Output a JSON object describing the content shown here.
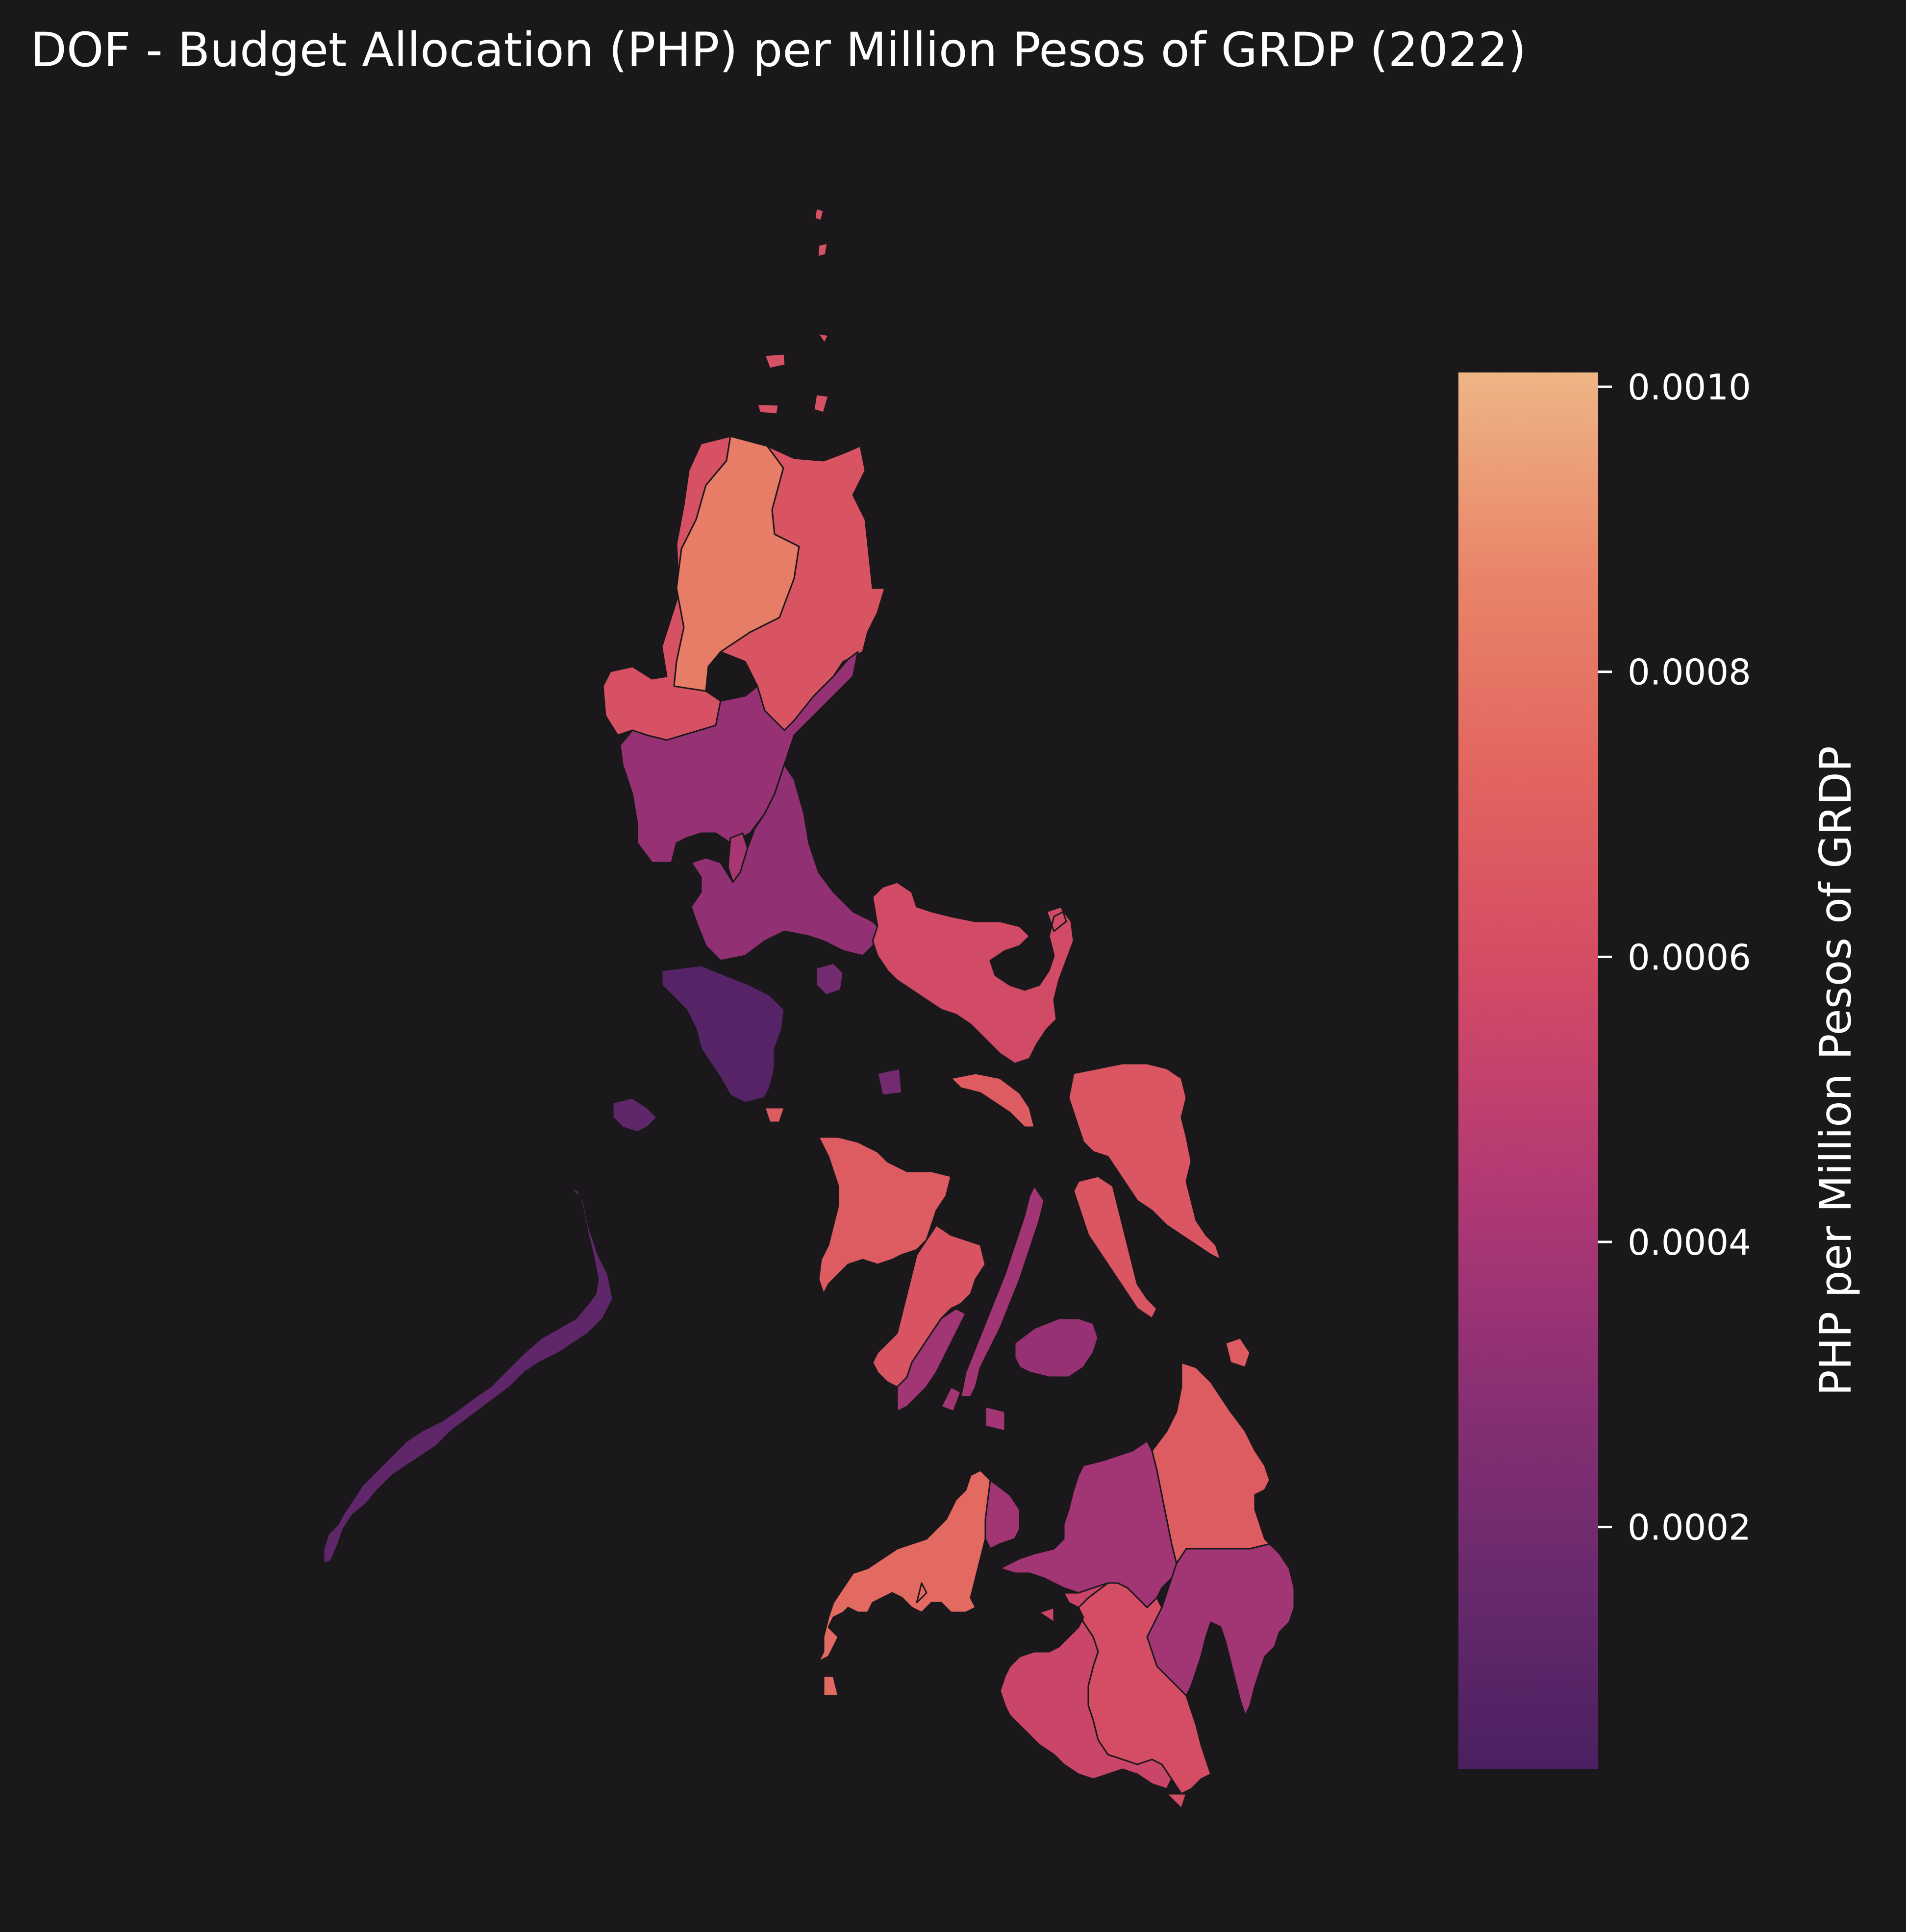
{
  "title": "DOF - Budget Allocation (PHP) per Million Pesos of GRDP (2022)",
  "colorbar": {
    "label": "PHP per Million Pesos of GRDP",
    "min": 3e-05,
    "max": 0.00101,
    "ticks": [
      {
        "value": 0.001,
        "label": "0.0010"
      },
      {
        "value": 0.0008,
        "label": "0.0008"
      },
      {
        "value": 0.0006,
        "label": "0.0006"
      },
      {
        "value": 0.0004,
        "label": "0.0004"
      },
      {
        "value": 0.0002,
        "label": "0.0002"
      }
    ],
    "stops": [
      "#4a2061",
      "#6b2a6e",
      "#8e3074",
      "#b53a73",
      "#d34b65",
      "#e2655f",
      "#e9856a",
      "#eeb586"
    ]
  },
  "background": "#1a181b",
  "chart_data": {
    "type": "choropleth",
    "regions": [
      {
        "key": "batanes",
        "value": 0.00062
      },
      {
        "key": "ilocos",
        "value": 0.00062
      },
      {
        "key": "car",
        "value": 0.00083
      },
      {
        "key": "cagayan-valley",
        "value": 0.00064
      },
      {
        "key": "central-luzon",
        "value": 0.00034
      },
      {
        "key": "ncr",
        "value": 0.0004
      },
      {
        "key": "calabarzon",
        "value": 0.00032
      },
      {
        "key": "mindoro",
        "value": 8e-05
      },
      {
        "key": "marinduque",
        "value": 0.0002
      },
      {
        "key": "palawan",
        "value": 0.00012
      },
      {
        "key": "bicol",
        "value": 0.00058
      },
      {
        "key": "eastern-visayas",
        "value": 0.00065
      },
      {
        "key": "western-visayas",
        "value": 0.00068
      },
      {
        "key": "central-visayas",
        "value": 0.00038
      },
      {
        "key": "negros-oriental",
        "value": 0.00064
      },
      {
        "key": "bohol",
        "value": 0.00034
      },
      {
        "key": "zamboanga",
        "value": 0.00075
      },
      {
        "key": "northern-mindanao",
        "value": 0.00038
      },
      {
        "key": "caraga",
        "value": 0.00068
      },
      {
        "key": "davao",
        "value": 0.00038
      },
      {
        "key": "soccsksargen",
        "value": 0.0006
      },
      {
        "key": "barmm",
        "value": 0.00055
      }
    ]
  }
}
